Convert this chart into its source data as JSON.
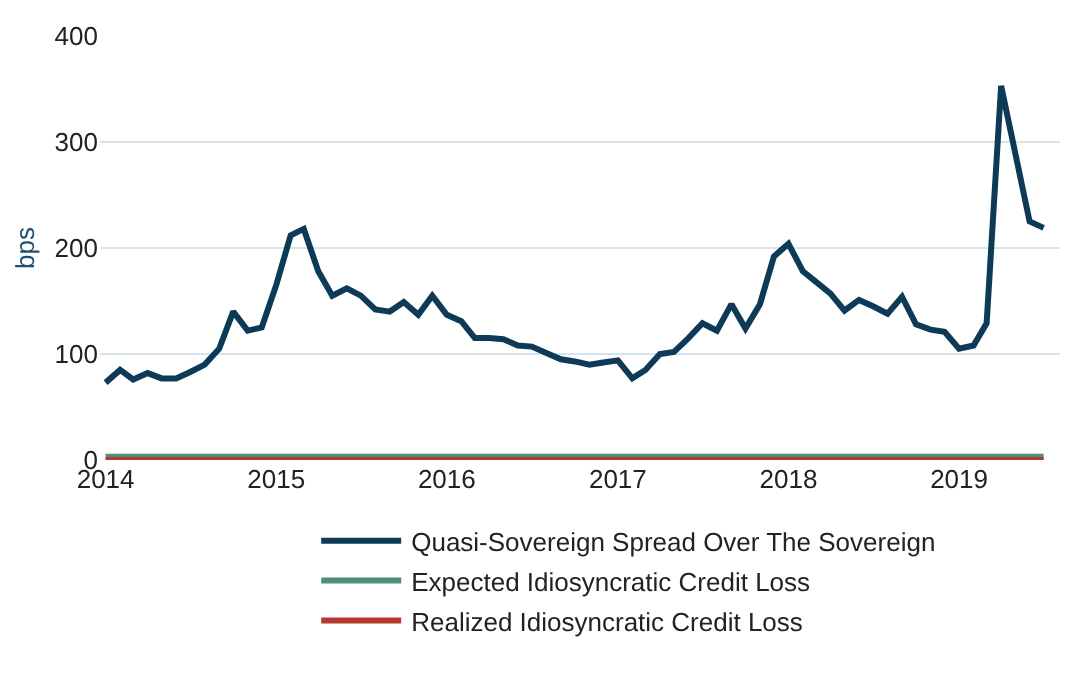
{
  "chart_data": {
    "type": "line",
    "ylabel": "bps",
    "x": [
      "2014-01",
      "2014-02",
      "2014-03",
      "2014-04",
      "2014-05",
      "2014-06",
      "2014-07",
      "2014-08",
      "2014-09",
      "2014-10",
      "2014-11",
      "2014-12",
      "2015-01",
      "2015-02",
      "2015-03",
      "2015-04",
      "2015-05",
      "2015-06",
      "2015-07",
      "2015-08",
      "2015-09",
      "2015-10",
      "2015-11",
      "2015-12",
      "2016-01",
      "2016-02",
      "2016-03",
      "2016-04",
      "2016-05",
      "2016-06",
      "2016-07",
      "2016-08",
      "2016-09",
      "2016-10",
      "2016-11",
      "2016-12",
      "2017-01",
      "2017-02",
      "2017-03",
      "2017-04",
      "2017-05",
      "2017-06",
      "2017-07",
      "2017-08",
      "2017-09",
      "2017-10",
      "2017-11",
      "2017-12",
      "2018-01",
      "2018-02",
      "2018-03",
      "2018-04",
      "2018-05",
      "2018-06",
      "2018-07",
      "2018-08",
      "2018-09",
      "2018-10",
      "2018-11",
      "2018-12",
      "2019-01",
      "2019-02",
      "2019-03",
      "2019-04",
      "2019-05",
      "2019-06",
      "2019-07"
    ],
    "series": [
      {
        "name": "Quasi-Sovereign Spread Over The Sovereign",
        "color": "#0d3a56",
        "values": [
          73,
          85,
          76,
          82,
          77,
          77,
          83,
          90,
          105,
          140,
          122,
          125,
          165,
          212,
          218,
          178,
          155,
          162,
          155,
          142,
          140,
          149,
          137,
          155,
          137,
          131,
          115,
          115,
          114,
          108,
          107,
          101,
          95,
          93,
          90,
          92,
          94,
          77,
          85,
          100,
          102,
          115,
          129,
          122,
          147,
          124,
          147,
          192,
          204,
          178,
          168,
          157,
          141,
          151,
          145,
          138,
          154,
          128,
          123,
          121,
          105,
          108,
          129,
          353,
          290,
          225,
          219
        ]
      },
      {
        "name": "Expected Idiosyncratic Credit Loss",
        "color": "#4e8f7c",
        "x": [
          "2014-01",
          "2019-07"
        ],
        "values": [
          3,
          3
        ]
      },
      {
        "name": "Realized Idiosyncratic Credit Loss",
        "color": "#b33a2e",
        "x": [
          "2014-01",
          "2019-07"
        ],
        "values": [
          0,
          0
        ]
      }
    ],
    "xlim": [
      "2013-12-20",
      "2019-08-05"
    ],
    "xticks": [
      {
        "value": "2014-01-01",
        "label": "2014"
      },
      {
        "value": "2015-01-01",
        "label": "2015"
      },
      {
        "value": "2016-01-01",
        "label": "2016"
      },
      {
        "value": "2017-01-01",
        "label": "2017"
      },
      {
        "value": "2018-01-01",
        "label": "2018"
      },
      {
        "value": "2019-01-01",
        "label": "2019"
      }
    ],
    "ylim": [
      0,
      400
    ],
    "yticks": [
      0,
      100,
      200,
      300,
      400
    ],
    "grid": "y",
    "legend": "bottom",
    "marker": "none",
    "line_style": "solid"
  }
}
